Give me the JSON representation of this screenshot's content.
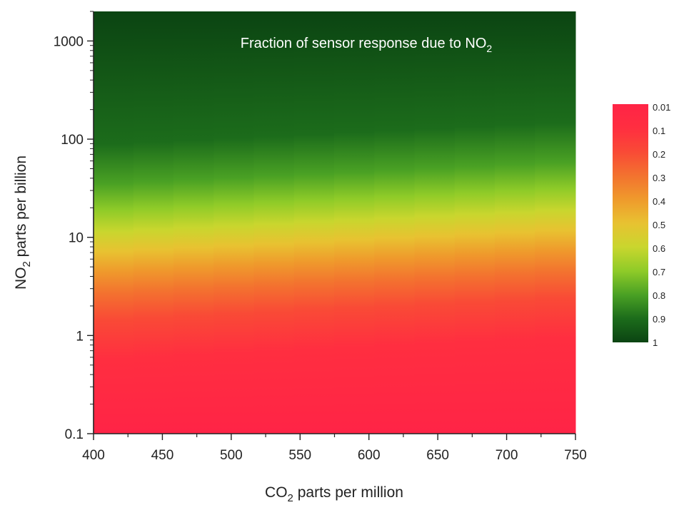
{
  "chart_data": {
    "type": "heatmap",
    "title": {
      "main": "Fraction of sensor response due to NO",
      "sub": "2"
    },
    "xlabel": {
      "main": "CO",
      "sub": "2",
      "rest": " parts per million"
    },
    "ylabel": {
      "main": "NO",
      "sub": "2",
      "rest": " parts per billion"
    },
    "x_scale": "linear",
    "y_scale": "log",
    "xlim": [
      400,
      750
    ],
    "ylim": [
      0.1,
      2000
    ],
    "x_ticks": [
      400,
      450,
      500,
      550,
      600,
      650,
      700,
      750
    ],
    "x_tick_labels": [
      "400",
      "450",
      "500",
      "550",
      "600",
      "650",
      "700",
      "750"
    ],
    "y_ticks": [
      0.1,
      1,
      10,
      100,
      1000
    ],
    "y_tick_labels": [
      "0.1",
      "1",
      "10",
      "100",
      "1000"
    ],
    "half_level_no2_ppb": {
      "x": [
        400,
        750
      ],
      "y": [
        7,
        12
      ]
    },
    "colorbar": {
      "labels": [
        "0.01",
        "0.1",
        "0.2",
        "0.3",
        "0.4",
        "0.5",
        "0.6",
        "0.7",
        "0.8",
        "0.9",
        "1"
      ],
      "colors": [
        "#ff2446",
        "#ff2e40",
        "#f94a36",
        "#f3722f",
        "#ef9a2c",
        "#e8c231",
        "#c9d62e",
        "#8fcb28",
        "#4aa124",
        "#1c6c1b",
        "#0b4412"
      ]
    },
    "grid": false,
    "legend": "colorbar-right"
  }
}
